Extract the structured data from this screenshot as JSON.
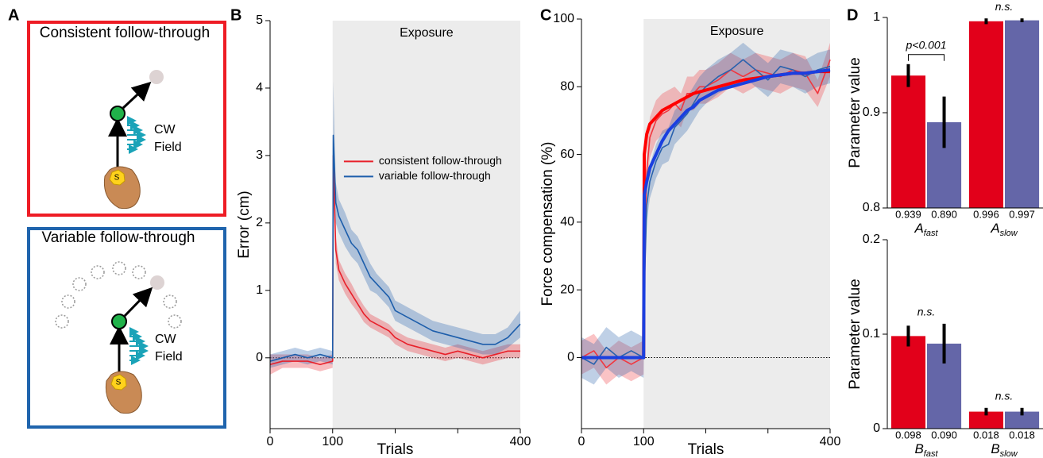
{
  "panel_labels": [
    "A",
    "B",
    "C",
    "D"
  ],
  "diagram": {
    "panels": [
      {
        "title": "Consistent follow-through",
        "field_label": [
          "CW",
          "Field"
        ],
        "hand_label": "S"
      },
      {
        "title": "Variable follow-through",
        "field_label": [
          "CW",
          "Field"
        ],
        "hand_label": "S"
      }
    ]
  },
  "chart_data": [
    {
      "type": "line",
      "xlabel": "Trials",
      "ylabel": "Error (cm)",
      "shaded_region": {
        "label": "Exposure",
        "from": 100,
        "to": 400
      },
      "reference_line": 0,
      "x": [
        0,
        20,
        40,
        60,
        80,
        100,
        101,
        105,
        110,
        120,
        130,
        140,
        150,
        160,
        170,
        180,
        190,
        200,
        220,
        240,
        260,
        280,
        300,
        320,
        340,
        360,
        380,
        400
      ],
      "series": [
        {
          "name": "consistent follow-through",
          "color": "#e8202a",
          "values": [
            -0.1,
            -0.05,
            -0.05,
            -0.05,
            -0.1,
            -0.05,
            3.0,
            1.6,
            1.3,
            1.1,
            0.95,
            0.8,
            0.65,
            0.55,
            0.5,
            0.45,
            0.4,
            0.3,
            0.2,
            0.15,
            0.1,
            0.05,
            0.1,
            0.05,
            0.0,
            0.05,
            0.1,
            0.1
          ],
          "errors": [
            0.15,
            0.1,
            0.1,
            0.1,
            0.1,
            0.1,
            0.3,
            0.2,
            0.15,
            0.15,
            0.15,
            0.12,
            0.12,
            0.1,
            0.1,
            0.1,
            0.1,
            0.1,
            0.1,
            0.1,
            0.1,
            0.1,
            0.1,
            0.1,
            0.1,
            0.1,
            0.1,
            0.1
          ]
        },
        {
          "name": "variable follow-through",
          "color": "#1d5eab",
          "values": [
            -0.05,
            0.0,
            0.05,
            0.0,
            0.05,
            0.0,
            3.3,
            2.3,
            2.1,
            1.9,
            1.7,
            1.6,
            1.4,
            1.2,
            1.1,
            1.0,
            0.9,
            0.7,
            0.6,
            0.5,
            0.4,
            0.35,
            0.3,
            0.25,
            0.2,
            0.2,
            0.3,
            0.5
          ],
          "errors": [
            0.1,
            0.1,
            0.1,
            0.1,
            0.1,
            0.1,
            0.8,
            0.3,
            0.25,
            0.25,
            0.2,
            0.2,
            0.2,
            0.2,
            0.15,
            0.15,
            0.15,
            0.15,
            0.15,
            0.15,
            0.15,
            0.15,
            0.15,
            0.15,
            0.15,
            0.15,
            0.15,
            0.2
          ]
        }
      ],
      "xlim": [
        0,
        400
      ],
      "xticks": [
        0,
        100,
        400
      ],
      "minor_xticks": [
        200,
        300
      ],
      "ylim": [
        -1.05,
        5
      ],
      "yticks": [
        0,
        1,
        2,
        3,
        4,
        5
      ],
      "legend": "center"
    },
    {
      "type": "line",
      "xlabel": "Trials",
      "ylabel": "Force compensation (%)",
      "shaded_region": {
        "label": "Exposure",
        "from": 100,
        "to": 400
      },
      "reference_line": 0,
      "x": [
        0,
        20,
        40,
        60,
        80,
        100,
        101,
        105,
        110,
        120,
        130,
        140,
        150,
        160,
        170,
        180,
        190,
        200,
        220,
        240,
        260,
        280,
        300,
        320,
        340,
        360,
        380,
        400
      ],
      "series": [
        {
          "color": "#f0373f",
          "values": [
            0,
            2,
            -3,
            0,
            -2,
            0,
            30,
            55,
            65,
            70,
            72,
            73,
            75,
            73,
            78,
            78,
            80,
            80,
            82,
            85,
            83,
            85,
            84,
            83,
            85,
            84,
            78,
            88
          ],
          "errors": [
            5,
            5,
            5,
            5,
            5,
            5,
            5,
            5,
            6,
            6,
            6,
            6,
            5,
            5,
            5,
            5,
            5,
            5,
            5,
            5,
            5,
            5,
            5,
            5,
            5,
            5,
            4,
            5
          ]
        },
        {
          "color": "#2a62ad",
          "values": [
            0,
            -2,
            3,
            0,
            2,
            0,
            20,
            45,
            52,
            58,
            62,
            63,
            68,
            70,
            72,
            75,
            78,
            80,
            83,
            85,
            88,
            85,
            82,
            86,
            85,
            83,
            85,
            86
          ],
          "errors": [
            6,
            6,
            6,
            6,
            6,
            6,
            5,
            5,
            5,
            5,
            5,
            5,
            5,
            5,
            5,
            5,
            5,
            5,
            5,
            5,
            5,
            5,
            5,
            5,
            5,
            5,
            5,
            5
          ]
        },
        {
          "color": "#ff0000",
          "line_width": 4,
          "values": [
            0,
            0,
            0,
            0,
            0,
            0,
            60,
            66,
            69,
            71,
            73,
            74,
            75,
            76,
            77,
            78,
            78.5,
            79,
            80,
            81,
            82,
            82.5,
            83,
            83.5,
            84,
            84,
            84.5,
            84.5
          ]
        },
        {
          "color": "#1a3fe0",
          "line_width": 4,
          "values": [
            0,
            0,
            0,
            0,
            0,
            0,
            48,
            52,
            56,
            60,
            64,
            67,
            69,
            71,
            73,
            74,
            76,
            77,
            79,
            80,
            81,
            82,
            83,
            83.5,
            84,
            84,
            84.5,
            85
          ]
        }
      ],
      "xlim": [
        0,
        400
      ],
      "xticks": [
        0,
        100,
        400
      ],
      "minor_xticks": [
        200,
        300
      ],
      "ylim": [
        -21,
        100
      ],
      "yticks": [
        0,
        20,
        40,
        60,
        80,
        100
      ]
    },
    {
      "type": "bar",
      "ylabel": "Parameter value",
      "categories": [
        {
          "symbol": "A",
          "subscript": "fast"
        },
        {
          "symbol": "A",
          "subscript": "slow"
        }
      ],
      "series": [
        {
          "color": "#e2001a",
          "values": [
            0.939,
            0.996
          ],
          "value_labels": [
            "0.939",
            "0.996"
          ],
          "errors": [
            0.012,
            0.003
          ]
        },
        {
          "color": "#6466a8",
          "values": [
            0.89,
            0.997
          ],
          "value_labels": [
            "0.890",
            "0.997"
          ],
          "errors": [
            0.027,
            0.002
          ]
        }
      ],
      "ylim": [
        0.8,
        1
      ],
      "yticks": [
        0.8,
        0.9,
        1
      ],
      "annotations": [
        {
          "text": "p<0.001",
          "category": 0,
          "bracket": true
        },
        {
          "text": "n.s.",
          "category": 1
        }
      ]
    },
    {
      "type": "bar",
      "ylabel": "Parameter value",
      "categories": [
        {
          "symbol": "B",
          "subscript": "fast"
        },
        {
          "symbol": "B",
          "subscript": "slow"
        }
      ],
      "series": [
        {
          "color": "#e2001a",
          "values": [
            0.098,
            0.018
          ],
          "value_labels": [
            "0.098",
            "0.018"
          ],
          "errors": [
            0.011,
            0.004
          ]
        },
        {
          "color": "#6466a8",
          "values": [
            0.09,
            0.018
          ],
          "value_labels": [
            "0.090",
            "0.018"
          ],
          "errors": [
            0.021,
            0.004
          ]
        }
      ],
      "ylim": [
        0,
        0.2
      ],
      "yticks": [
        0,
        0.1,
        0.2
      ],
      "annotations": [
        {
          "text": "n.s.",
          "category": 0
        },
        {
          "text": "n.s.",
          "category": 1
        }
      ]
    }
  ]
}
